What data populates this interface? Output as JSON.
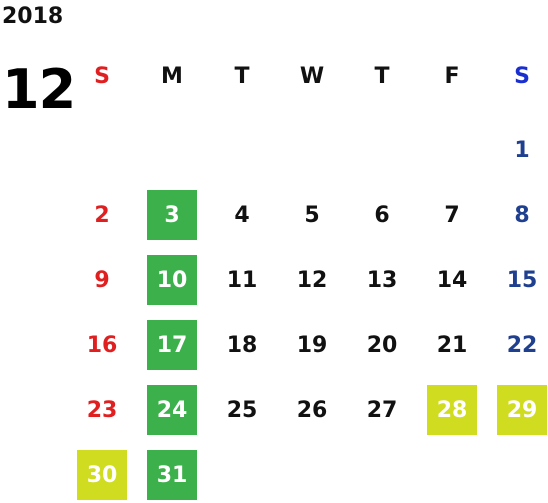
{
  "calendar": {
    "year": "2018",
    "month": "12",
    "weekdays": [
      {
        "label": "S",
        "type": "sun"
      },
      {
        "label": "M",
        "type": "weekday"
      },
      {
        "label": "T",
        "type": "weekday"
      },
      {
        "label": "W",
        "type": "weekday"
      },
      {
        "label": "T",
        "type": "weekday"
      },
      {
        "label": "F",
        "type": "weekday"
      },
      {
        "label": "S",
        "type": "sat"
      }
    ],
    "first_weekday_index": 6,
    "days_in_month": 31,
    "highlights": {
      "green": [
        3,
        10,
        17,
        24,
        31
      ],
      "yellow": [
        28,
        29,
        30
      ]
    },
    "colors": {
      "sunday": "#e02020",
      "saturday_header": "#1a2fd0",
      "saturday_day": "#1f3f8f",
      "green_highlight": "#3cb04b",
      "yellow_highlight": "#cfdc1f"
    }
  }
}
